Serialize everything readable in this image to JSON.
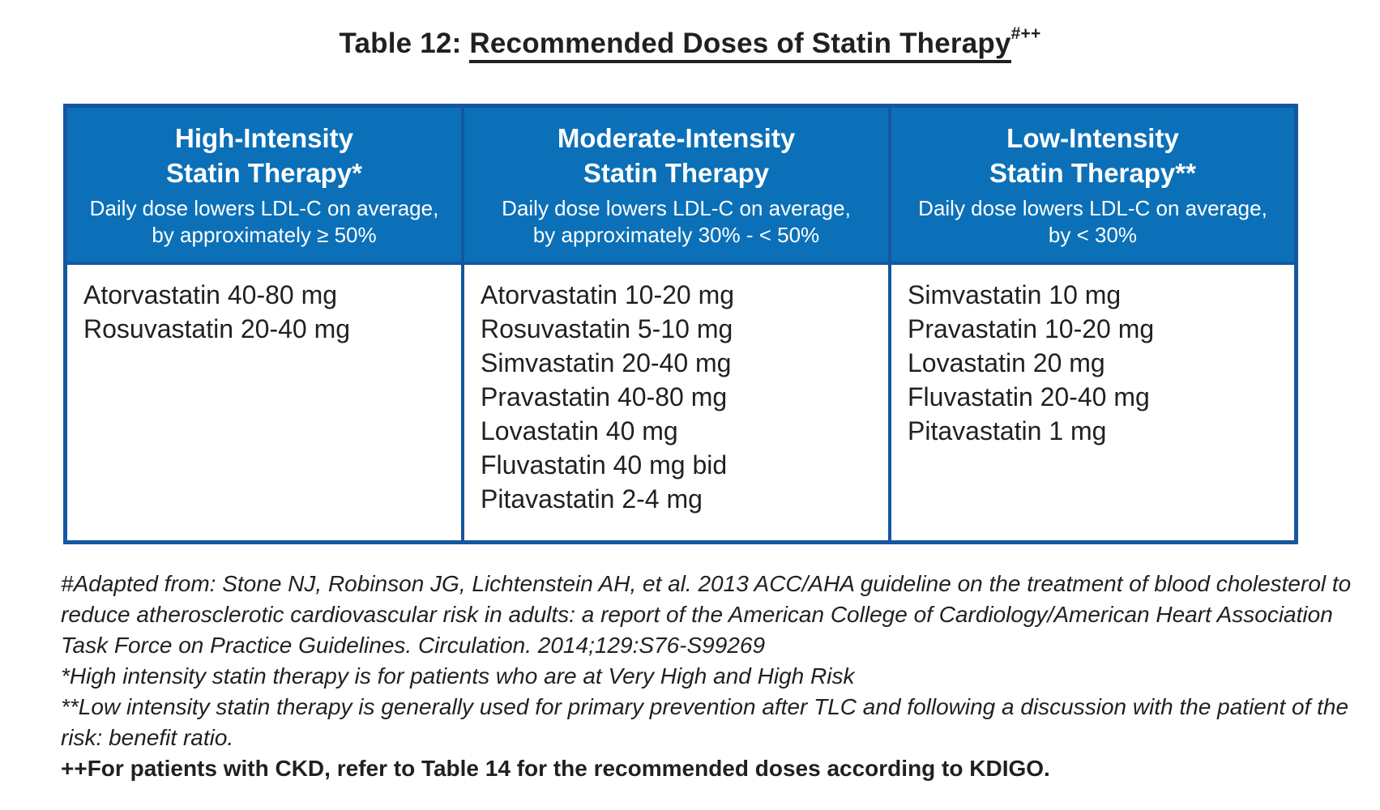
{
  "page": {
    "title": {
      "prefix": "Table 12: ",
      "main": "Recommended Doses of Statin Therapy",
      "superscript": "#++"
    }
  },
  "table": {
    "columns": [
      {
        "title_line1": "High-Intensity",
        "title_line2": "Statin Therapy*",
        "subtitle_line1": "Daily dose lowers LDL-C on average,",
        "subtitle_line2": "by approximately ≥ 50%",
        "drugs": [
          "Atorvastatin 40-80 mg",
          "Rosuvastatin 20-40 mg"
        ]
      },
      {
        "title_line1": "Moderate-Intensity",
        "title_line2": "Statin Therapy",
        "subtitle_line1": "Daily dose lowers LDL-C on average,",
        "subtitle_line2": "by approximately 30% - < 50%",
        "drugs": [
          "Atorvastatin 10-20 mg",
          "Rosuvastatin 5-10 mg",
          "Simvastatin 20-40 mg",
          "Pravastatin 40-80 mg",
          "Lovastatin 40 mg",
          "Fluvastatin 40 mg bid",
          "Pitavastatin 2-4 mg"
        ]
      },
      {
        "title_line1": "Low-Intensity",
        "title_line2": "Statin Therapy**",
        "subtitle_line1": "Daily dose lowers LDL-C on average,",
        "subtitle_line2": "by < 30%",
        "drugs": [
          "Simvastatin 10 mg",
          "Pravastatin 10-20 mg",
          "Lovastatin 20 mg",
          "Fluvastatin 20-40 mg",
          "Pitavastatin 1 mg"
        ]
      }
    ]
  },
  "footnotes": {
    "adapted": "#Adapted from: Stone NJ, Robinson JG, Lichtenstein AH, et al. 2013 ACC/AHA guideline on the treatment of blood cholesterol to reduce atherosclerotic cardiovascular risk in adults: a report of the American College of Cardiology/American Heart Association Task Force on Practice Guidelines. Circulation. 2014;129:S76-S99269",
    "high_risk": "*High intensity statin therapy is for patients who are at Very High and High Risk",
    "low_risk": "**Low intensity statin therapy is generally used for primary prevention after TLC and following a discussion with the patient of the risk: benefit ratio.",
    "ckd": "++For patients with CKD, refer to Table 14 for the recommended doses according to KDIGO."
  },
  "colors": {
    "header_fill": "#0B70B8",
    "table_border": "#1456A0",
    "header_text": "#FFFFFF",
    "body_text": "#231F20"
  }
}
